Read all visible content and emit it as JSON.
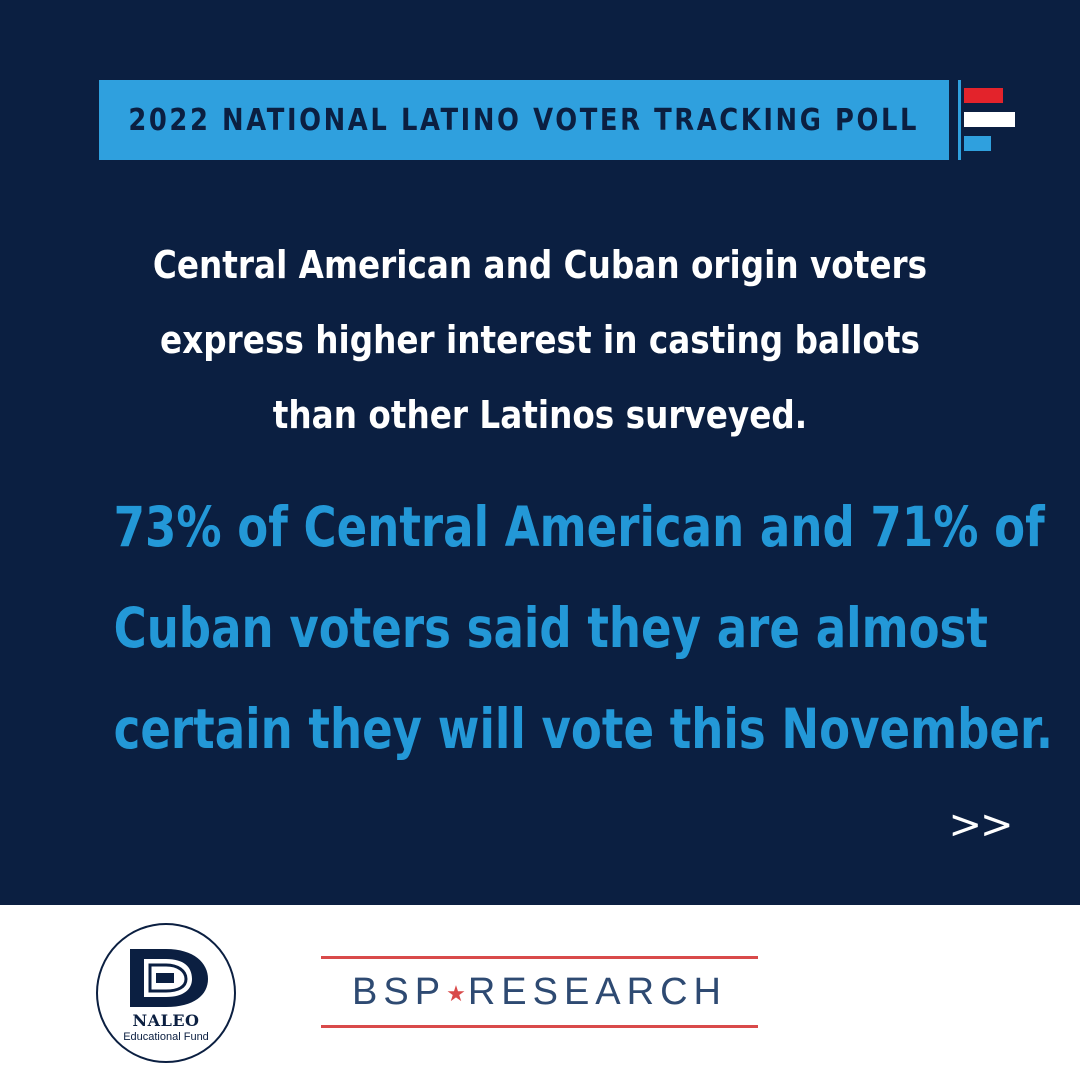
{
  "banner": {
    "title": "2022 NATIONAL LATINO VOTER TRACKING POLL"
  },
  "headline": {
    "lines": [
      "Central American and Cuban origin voters",
      "express higher interest in casting ballots",
      "than other Latinos surveyed."
    ]
  },
  "stat": {
    "lines": [
      "73% of Central American and 71% of",
      "Cuban voters said they are almost",
      "certain they will vote this November."
    ]
  },
  "navigation": {
    "next_label": ">>"
  },
  "logos": {
    "naleo": {
      "name": "NALEO",
      "subtitle": "Educational Fund"
    },
    "bsp": {
      "part1": "BSP",
      "star": "★",
      "part2": "RESEARCH"
    }
  },
  "colors": {
    "navy": "#0b1f41",
    "accent_blue": "#2fa0de",
    "stat_blue": "#2398d7",
    "flag_red": "#e3232b",
    "white": "#ffffff",
    "bsp_red": "#d94a4a",
    "bsp_blue": "#2e4a72"
  }
}
